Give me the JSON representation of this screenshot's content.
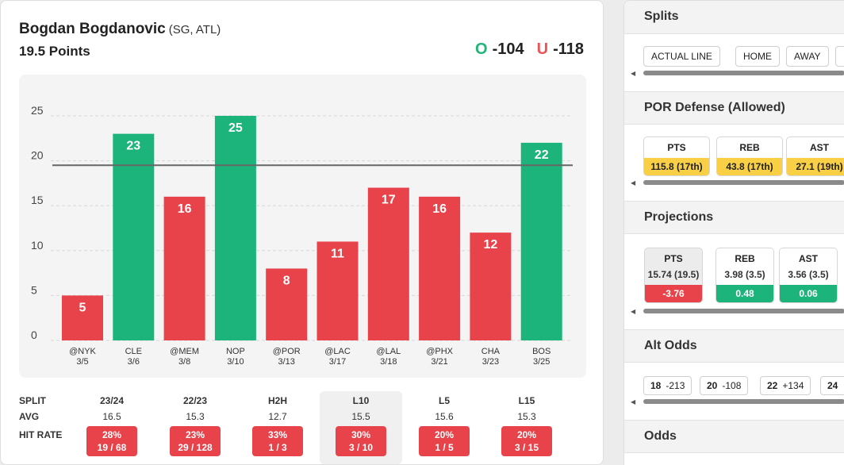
{
  "player": {
    "name": "Bogdan Bogdanovic",
    "meta": "(SG, ATL)",
    "line_label": "19.5 Points"
  },
  "odds": {
    "over_letter": "O",
    "over_value": "-104",
    "under_letter": "U",
    "under_value": "-118"
  },
  "chart_data": {
    "type": "bar",
    "title": "",
    "xlabel": "",
    "ylabel": "",
    "ylim": [
      0,
      28
    ],
    "yticks": [
      0,
      5,
      10,
      15,
      20,
      25
    ],
    "grid": true,
    "threshold": 19.5,
    "categories": [
      "@NYK",
      "CLE",
      "@MEM",
      "NOP",
      "@POR",
      "@LAC",
      "@LAL",
      "@PHX",
      "CHA",
      "BOS"
    ],
    "dates": [
      "3/5",
      "3/6",
      "3/8",
      "3/10",
      "3/13",
      "3/17",
      "3/18",
      "3/21",
      "3/23",
      "3/25"
    ],
    "values": [
      5,
      23,
      16,
      25,
      8,
      11,
      17,
      16,
      12,
      22
    ],
    "colors": {
      "over": "#1db47b",
      "under": "#e8434a",
      "line": "#666666",
      "grid": "#d7d7d7"
    }
  },
  "splits": {
    "row_labels": {
      "split": "SPLIT",
      "avg": "AVG",
      "hit": "HIT RATE"
    },
    "columns": [
      {
        "label": "23/24",
        "avg": "16.5",
        "pct": "28%",
        "frac": "19 / 68",
        "highlight": false
      },
      {
        "label": "22/23",
        "avg": "15.3",
        "pct": "23%",
        "frac": "29 / 128",
        "highlight": false
      },
      {
        "label": "H2H",
        "avg": "12.7",
        "pct": "33%",
        "frac": "1 / 3",
        "highlight": false
      },
      {
        "label": "L10",
        "avg": "15.5",
        "pct": "30%",
        "frac": "3 / 10",
        "highlight": true
      },
      {
        "label": "L5",
        "avg": "15.6",
        "pct": "20%",
        "frac": "1 / 5",
        "highlight": false
      },
      {
        "label": "L15",
        "avg": "15.3",
        "pct": "20%",
        "frac": "3 / 15",
        "highlight": false
      }
    ]
  },
  "sidebar": {
    "splits": {
      "title": "Splits",
      "buttons": [
        "ACTUAL LINE",
        "HOME",
        "AWAY"
      ]
    },
    "defense": {
      "title": "POR Defense (Allowed)",
      "stats": [
        {
          "label": "PTS",
          "value": "115.8 (17th)"
        },
        {
          "label": "REB",
          "value": "43.8 (17th)"
        },
        {
          "label": "AST",
          "value": "27.1 (19th)"
        }
      ]
    },
    "projections": {
      "title": "Projections",
      "items": [
        {
          "label": "PTS",
          "value": "15.74 (19.5)",
          "diff": "-3.76",
          "dir": "neg",
          "selected": true
        },
        {
          "label": "REB",
          "value": "3.98 (3.5)",
          "diff": "0.48",
          "dir": "pos",
          "selected": false
        },
        {
          "label": "AST",
          "value": "3.56 (3.5)",
          "diff": "0.06",
          "dir": "pos",
          "selected": false
        }
      ]
    },
    "alt_odds": {
      "title": "Alt Odds",
      "items": [
        {
          "line": "18",
          "odds": "-213"
        },
        {
          "line": "20",
          "odds": "-108"
        },
        {
          "line": "22",
          "odds": "+134"
        },
        {
          "line": "24",
          "odds": ""
        }
      ]
    },
    "odds_section": {
      "title": "Odds"
    },
    "scroll_arrow": "◀"
  }
}
